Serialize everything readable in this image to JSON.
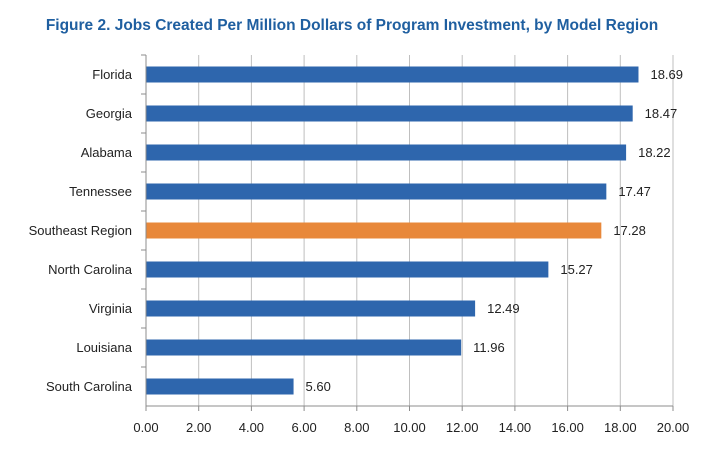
{
  "chart_data": {
    "type": "bar",
    "orientation": "horizontal",
    "title": "Figure 2. Jobs Created Per Million Dollars of Program Investment, by Model Region",
    "xlabel": "",
    "ylabel": "",
    "categories": [
      "Florida",
      "Georgia",
      "Alabama",
      "Tennessee",
      "Southeast Region",
      "North Carolina",
      "Virginia",
      "Louisiana",
      "South Carolina"
    ],
    "values": [
      18.69,
      18.47,
      18.22,
      17.47,
      17.28,
      15.27,
      12.49,
      11.96,
      5.6
    ],
    "value_labels": [
      "18.69",
      "18.47",
      "18.22",
      "17.47",
      "17.28",
      "15.27",
      "12.49",
      "11.96",
      "5.60"
    ],
    "highlight_category": "Southeast Region",
    "xlim": [
      0,
      20
    ],
    "x_ticks": [
      "0.00",
      "2.00",
      "4.00",
      "6.00",
      "8.00",
      "10.00",
      "12.00",
      "14.00",
      "16.00",
      "18.00",
      "20.00"
    ],
    "grid": "vertical",
    "legend": "none",
    "colors": {
      "bar": "#2e66ad",
      "highlight": "#e8883a",
      "title": "#1f5fa0"
    }
  }
}
